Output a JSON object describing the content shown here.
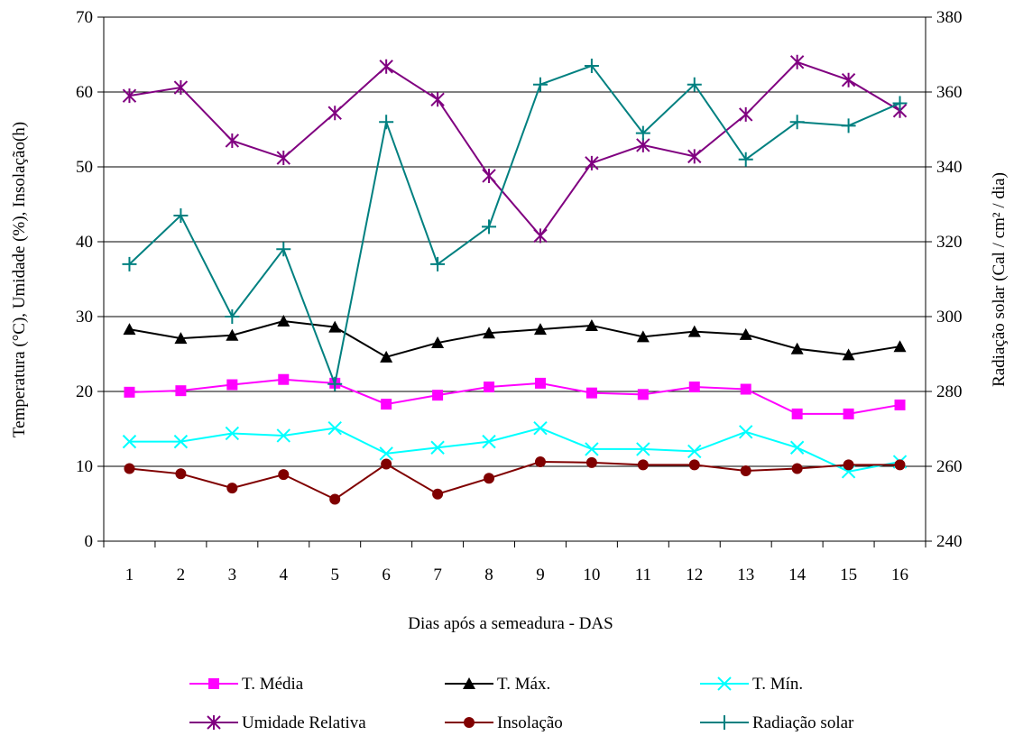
{
  "chart_data": {
    "type": "line",
    "title": "",
    "xlabel": "Dias após a semeadura - DAS",
    "ylabel_left": "Temperatura (°C), Umidade (%), Insolação(h)",
    "ylabel_right": "Radiação solar (Cal / cm² / dia)",
    "ylim_left": [
      0,
      70
    ],
    "ylim_right": [
      240,
      380
    ],
    "yticks_left": [
      0,
      10,
      20,
      30,
      40,
      50,
      60,
      70
    ],
    "yticks_right": [
      240,
      260,
      280,
      300,
      320,
      340,
      360,
      380
    ],
    "grid": "horizontal",
    "legend_position": "bottom",
    "categories": [
      "1",
      "2",
      "3",
      "4",
      "5",
      "6",
      "7",
      "8",
      "9",
      "10",
      "11",
      "12",
      "13",
      "14",
      "15",
      "16"
    ],
    "series": [
      {
        "name": "T. Média",
        "axis": "left",
        "color": "#ff00ff",
        "marker": "square",
        "values": [
          19.9,
          20.1,
          20.9,
          21.6,
          21.1,
          18.3,
          19.5,
          20.6,
          21.1,
          19.8,
          19.6,
          20.6,
          20.3,
          17.0,
          17.0,
          18.2
        ]
      },
      {
        "name": "T. Máx.",
        "axis": "left",
        "color": "#000000",
        "marker": "triangle",
        "values": [
          28.3,
          27.1,
          27.5,
          29.4,
          28.6,
          24.6,
          26.5,
          27.8,
          28.3,
          28.8,
          27.3,
          28.0,
          27.6,
          25.7,
          24.9,
          26.0
        ]
      },
      {
        "name": "T. Mín.",
        "axis": "left",
        "color": "#00ffff",
        "marker": "x",
        "values": [
          13.3,
          13.3,
          14.4,
          14.1,
          15.1,
          11.7,
          12.5,
          13.3,
          15.1,
          12.3,
          12.3,
          12.0,
          14.6,
          12.5,
          9.3,
          10.6
        ]
      },
      {
        "name": "Umidade Relativa",
        "axis": "left",
        "color": "#800080",
        "marker": "star",
        "values": [
          59.5,
          60.6,
          53.5,
          51.2,
          57.2,
          63.4,
          59.0,
          48.8,
          40.8,
          50.5,
          52.9,
          51.4,
          57.0,
          64.0,
          61.6,
          57.5
        ]
      },
      {
        "name": "Insolação",
        "axis": "left",
        "color": "#800000",
        "marker": "circle",
        "values": [
          9.7,
          9.0,
          7.1,
          8.9,
          5.6,
          10.3,
          6.3,
          8.4,
          10.6,
          10.5,
          10.2,
          10.2,
          9.4,
          9.7,
          10.2,
          10.2
        ]
      },
      {
        "name": "Radiação solar",
        "axis": "right",
        "color": "#008080",
        "marker": "plus",
        "values": [
          314,
          327,
          300,
          318,
          282,
          352,
          314,
          324,
          362,
          367,
          349,
          362,
          342,
          352,
          351,
          357
        ]
      }
    ]
  }
}
